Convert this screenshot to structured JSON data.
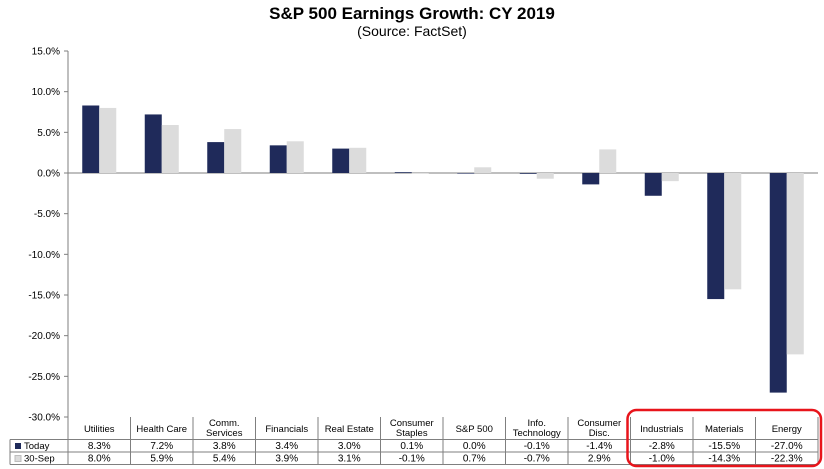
{
  "title": "S&P 500 Earnings Growth: CY 2019",
  "subtitle": "(Source: FactSet)",
  "chart_data": {
    "type": "bar",
    "categories": [
      [
        "Utilities"
      ],
      [
        "Health Care"
      ],
      [
        "Comm.",
        "Services"
      ],
      [
        "Financials"
      ],
      [
        "Real Estate"
      ],
      [
        "Consumer",
        "Staples"
      ],
      [
        "S&P 500"
      ],
      [
        "Info.",
        "Technology"
      ],
      [
        "Consumer",
        "Disc."
      ],
      [
        "Industrials"
      ],
      [
        "Materials"
      ],
      [
        "Energy"
      ]
    ],
    "series": [
      {
        "name": "Today",
        "color": "#1f2a5a",
        "values": [
          8.3,
          7.2,
          3.8,
          3.4,
          3.0,
          0.1,
          0.0,
          -0.1,
          -1.4,
          -2.8,
          -15.5,
          -27.0
        ],
        "labels": [
          "8.3%",
          "7.2%",
          "3.8%",
          "3.4%",
          "3.0%",
          "0.1%",
          "0.0%",
          "-0.1%",
          "-1.4%",
          "-2.8%",
          "-15.5%",
          "-27.0%"
        ]
      },
      {
        "name": "30-Sep",
        "color": "#dcdcdc",
        "values": [
          8.0,
          5.9,
          5.4,
          3.9,
          3.1,
          -0.1,
          0.7,
          -0.7,
          2.9,
          -1.0,
          -14.3,
          -22.3
        ],
        "labels": [
          "8.0%",
          "5.9%",
          "5.4%",
          "3.9%",
          "3.1%",
          "-0.1%",
          "0.7%",
          "-0.7%",
          "2.9%",
          "-1.0%",
          "-14.3%",
          "-22.3%"
        ]
      }
    ],
    "ylim": [
      -30,
      15
    ],
    "yticks": [
      15,
      10,
      5,
      0,
      -5,
      -10,
      -15,
      -20,
      -25,
      -30
    ],
    "ytick_labels": [
      "15.0%",
      "10.0%",
      "5.0%",
      "0.0%",
      "-5.0%",
      "-10.0%",
      "-15.0%",
      "-20.0%",
      "-25.0%",
      "-30.0%"
    ],
    "highlight_color": "#e8141b",
    "highlight_range": [
      9,
      11
    ],
    "data_table": true
  }
}
